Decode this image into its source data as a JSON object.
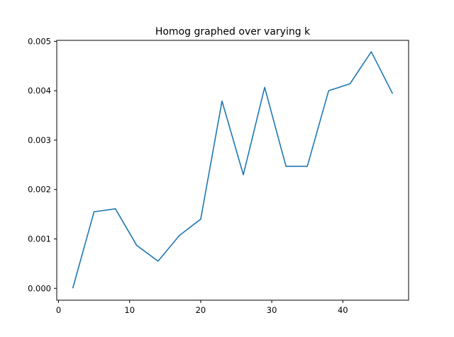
{
  "chart_data": {
    "type": "line",
    "title": "Homog graphed over varying k",
    "xlabel": "",
    "ylabel": "",
    "xlim": [
      -0.25,
      49.25
    ],
    "ylim": [
      -0.00024,
      0.00502
    ],
    "xticks": [
      0,
      10,
      20,
      30,
      40
    ],
    "xtick_labels": [
      "0",
      "10",
      "20",
      "30",
      "40"
    ],
    "yticks": [
      0.0,
      0.001,
      0.002,
      0.003,
      0.004,
      0.005
    ],
    "ytick_labels": [
      "0.000",
      "0.001",
      "0.002",
      "0.003",
      "0.004",
      "0.005"
    ],
    "grid": false,
    "series": [
      {
        "color": "#1f77b4",
        "x": [
          2,
          5,
          8,
          11,
          14,
          17,
          20,
          23,
          26,
          29,
          32,
          35,
          38,
          41,
          44,
          47
        ],
        "y": [
          0.0,
          0.00155,
          0.00161,
          0.00087,
          0.00055,
          0.00107,
          0.0014,
          0.00379,
          0.0023,
          0.00407,
          0.00247,
          0.00247,
          0.004,
          0.00414,
          0.00479,
          0.00394
        ]
      }
    ]
  }
}
